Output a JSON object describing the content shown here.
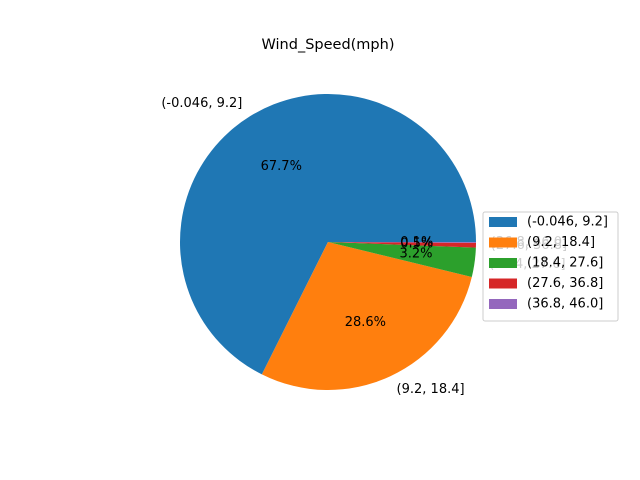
{
  "chart_data": {
    "type": "pie",
    "title": "Wind_Speed(mph)",
    "labels": [
      "(-0.046, 9.2]",
      "(9.2, 18.4]",
      "(18.4, 27.6]",
      "(27.6, 36.8]",
      "(36.8, 46.0]"
    ],
    "values": [
      67.7,
      28.6,
      3.2,
      0.5,
      0.1
    ],
    "percent_labels": [
      "67.7%",
      "28.6%",
      "3.2%",
      "0.5%",
      "0.1%"
    ],
    "colors": [
      "#1f77b4",
      "#ff7f0e",
      "#2ca02c",
      "#d62728",
      "#9467bd"
    ],
    "start_angle_deg": 0,
    "direction": "counterclockwise",
    "legend": {
      "placement": "center-right",
      "entries": [
        "(-0.046, 9.2]",
        "(9.2, 18.4]",
        "(18.4, 27.6]",
        "(27.6, 36.8]",
        "(36.8, 46.0]"
      ]
    }
  }
}
